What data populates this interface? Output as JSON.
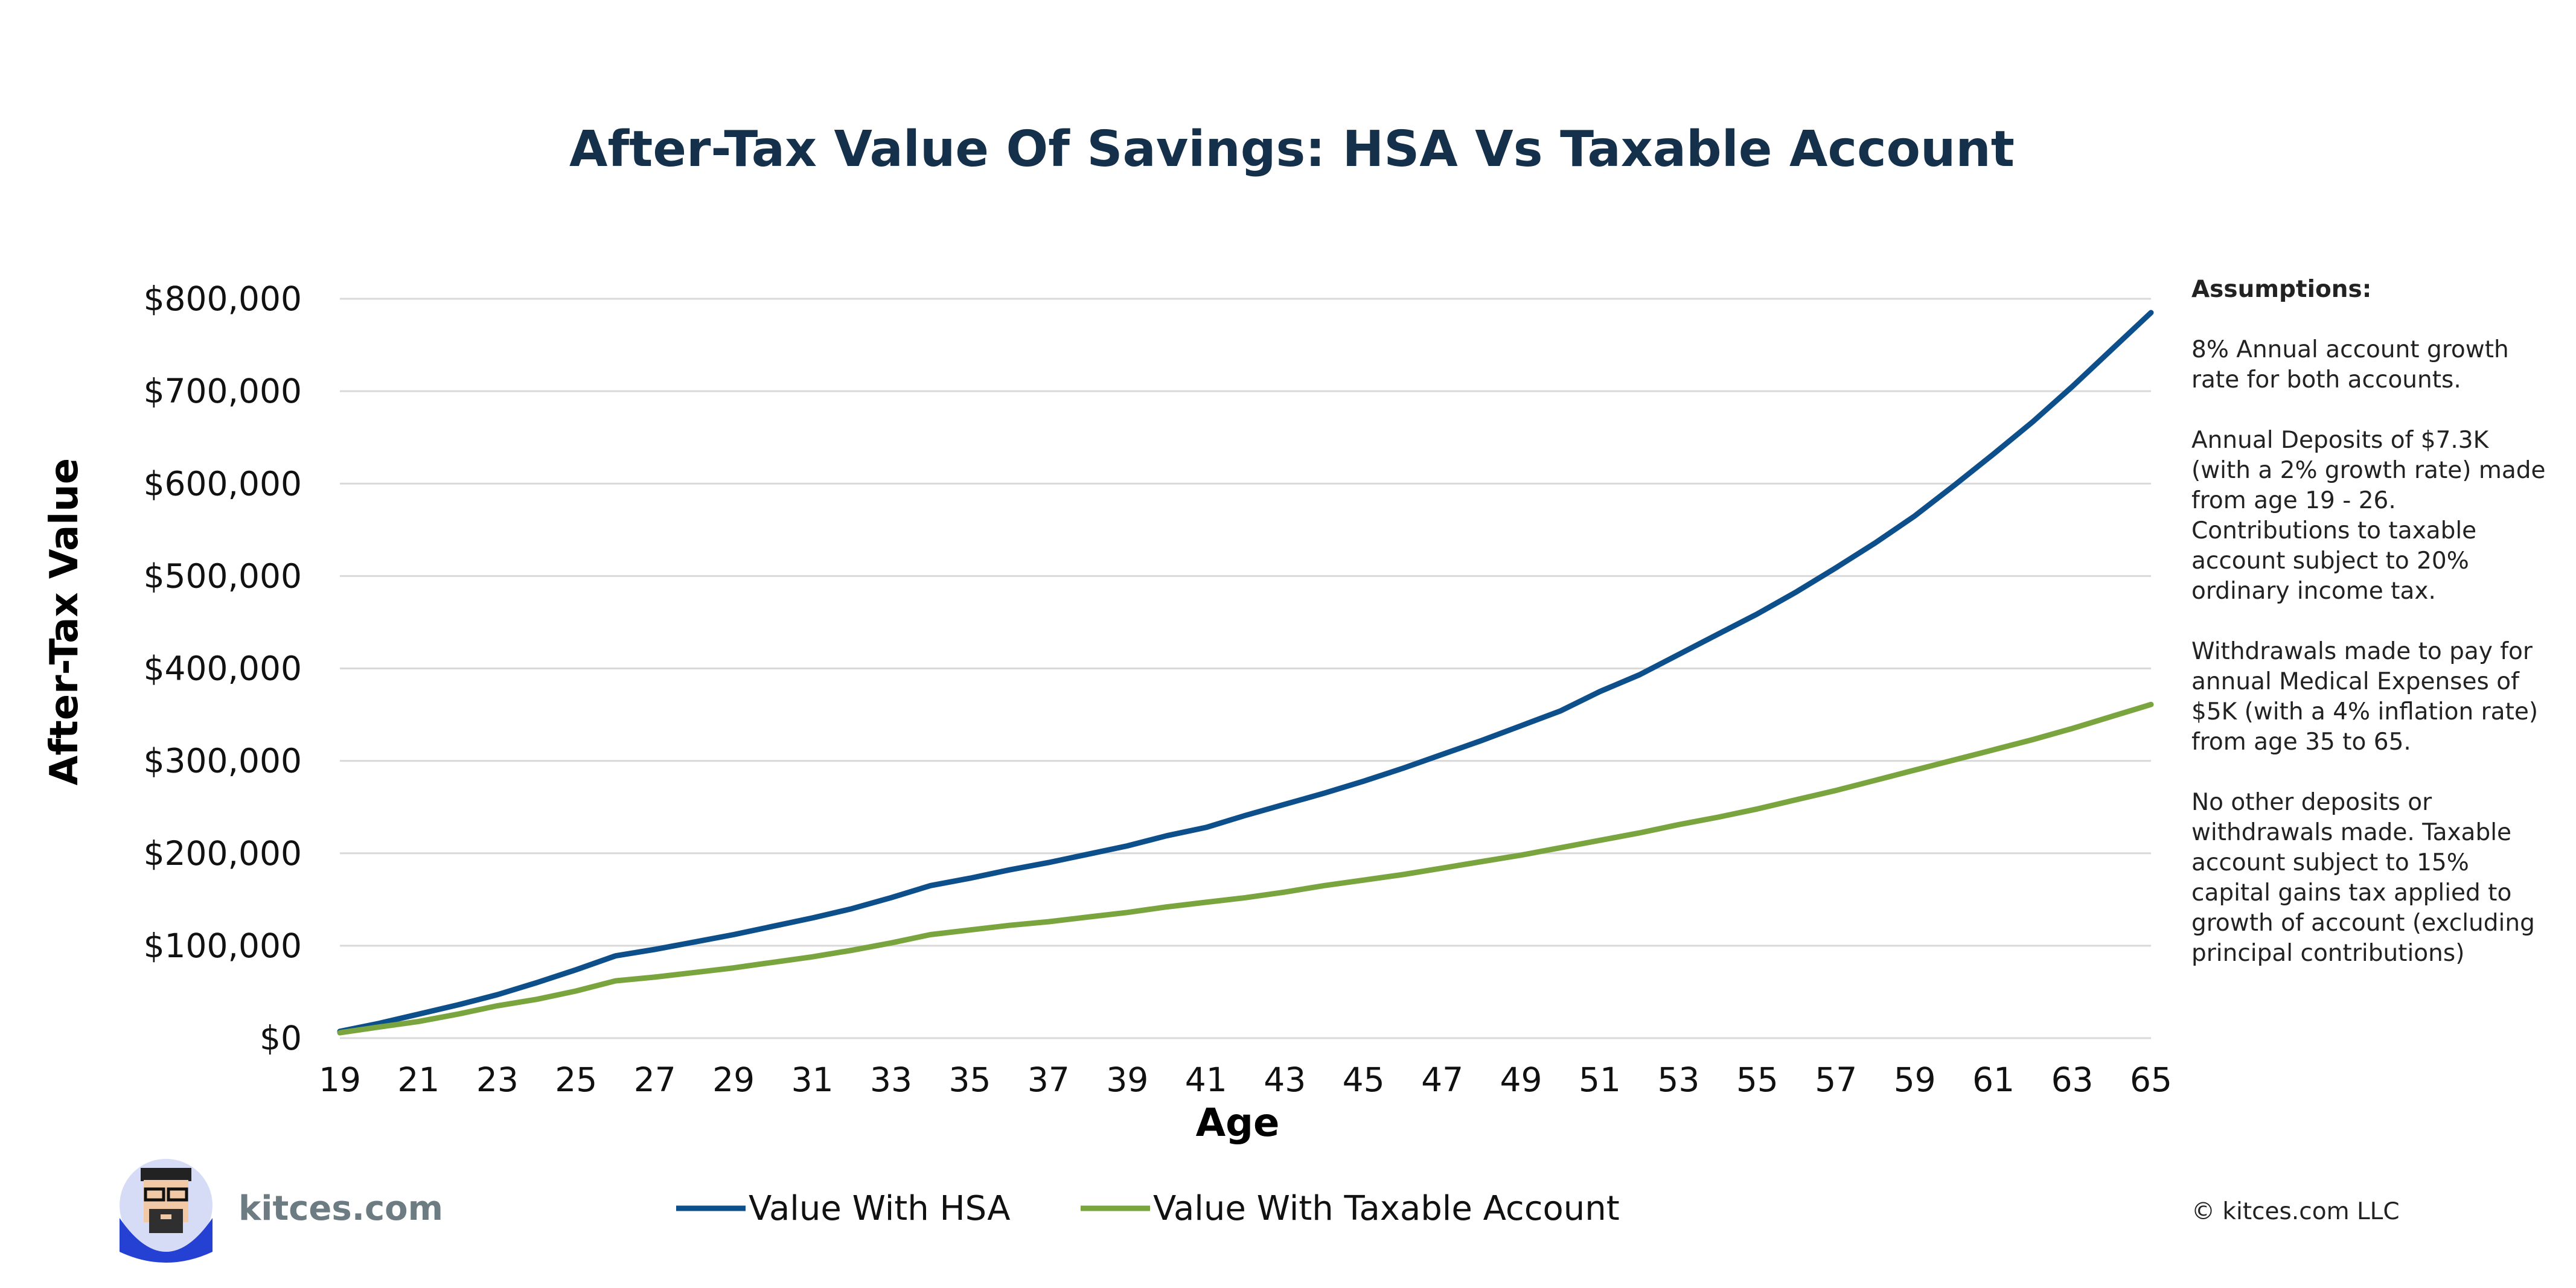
{
  "brand": {
    "name": "kitces.com"
  },
  "copyright": "© kitces.com LLC",
  "assumptions": {
    "heading": "Assumptions:",
    "paragraphs": [
      "8% Annual account growth rate for both accounts.",
      "Annual Deposits of $7.3K (with a 2% growth rate) made from age 19 - 26. Contributions to taxable account subject to 20% ordinary income tax.",
      "Withdrawals made to pay for annual Medical Expenses of $5K (with a 4% inflation rate) from age 35 to 65.",
      "No other deposits or withdrawals made. Taxable account subject to 15% capital gains tax applied to growth of account (excluding principal contributions)"
    ]
  },
  "chart_data": {
    "type": "line",
    "title": "After-Tax Value Of Savings: HSA Vs Taxable Account",
    "xlabel": "Age",
    "ylabel": "After-Tax Value",
    "ylim": [
      0,
      800000
    ],
    "yticks": [
      0,
      100000,
      200000,
      300000,
      400000,
      500000,
      600000,
      700000,
      800000
    ],
    "ytick_labels": [
      "$0",
      "$100,000",
      "$200,000",
      "$300,000",
      "$400,000",
      "$500,000",
      "$600,000",
      "$700,000",
      "$800,000"
    ],
    "xticks": [
      19,
      21,
      23,
      25,
      27,
      29,
      31,
      33,
      35,
      37,
      39,
      41,
      43,
      45,
      47,
      49,
      51,
      53,
      55,
      57,
      59,
      61,
      63,
      65
    ],
    "grid": "horizontal",
    "legend": "bottom",
    "x": [
      19,
      20,
      21,
      22,
      23,
      24,
      25,
      26,
      27,
      28,
      29,
      30,
      31,
      32,
      33,
      34,
      35,
      36,
      37,
      38,
      39,
      40,
      41,
      42,
      43,
      44,
      45,
      46,
      47,
      48,
      49,
      50,
      51,
      52,
      53,
      54,
      55,
      56,
      57,
      58,
      59,
      60,
      61,
      62,
      63,
      64,
      65
    ],
    "series": [
      {
        "name": "Value With HSA",
        "color": "#0d4f8b",
        "values": [
          7300,
          16000,
          26000,
          36000,
          47000,
          60000,
          74000,
          89000,
          96000,
          104000,
          112000,
          121000,
          130000,
          140000,
          152000,
          165000,
          173000,
          182000,
          190000,
          199000,
          208000,
          219000,
          228000,
          241000,
          253000,
          265000,
          278000,
          292000,
          307000,
          322000,
          338000,
          354000,
          375000,
          393000,
          415000,
          437000,
          459000,
          483000,
          509000,
          536000,
          565000,
          598000,
          632000,
          667000,
          705000,
          745000,
          785000
        ]
      },
      {
        "name": "Value With Taxable Account",
        "color": "#7aa53e",
        "values": [
          5800,
          12000,
          18000,
          26000,
          35000,
          42000,
          51000,
          62000,
          66000,
          71000,
          76000,
          82000,
          88000,
          95000,
          103000,
          112000,
          117000,
          122000,
          126000,
          131000,
          136000,
          142000,
          147000,
          152000,
          158000,
          165000,
          171000,
          177000,
          184000,
          191000,
          198000,
          206000,
          214000,
          222000,
          231000,
          239000,
          248000,
          258000,
          268000,
          279000,
          290000,
          301000,
          312000,
          323000,
          335000,
          348000,
          361000
        ]
      }
    ]
  }
}
